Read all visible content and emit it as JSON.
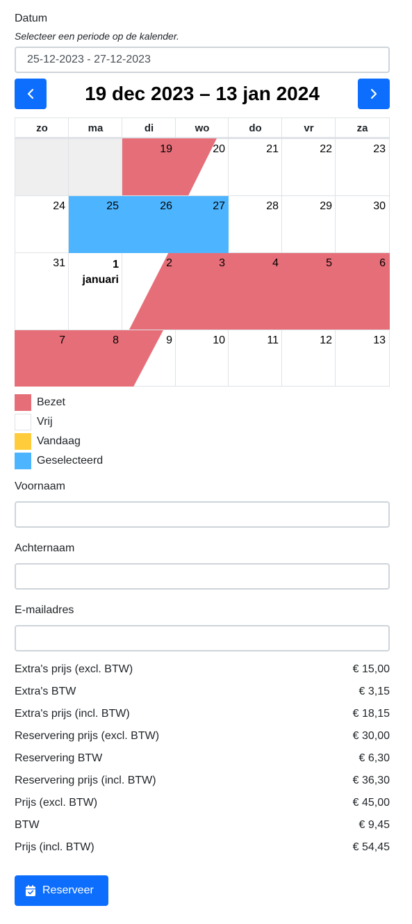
{
  "form": {
    "date_label": "Datum",
    "date_hint": "Selecteer een periode op de kalender.",
    "date_value": "25-12-2023 - 27-12-2023"
  },
  "calendar": {
    "title": "19 dec 2023 – 13 jan 2024",
    "prev_icon": "chevron-left-icon",
    "next_icon": "chevron-right-icon",
    "weekdays": [
      "zo",
      "ma",
      "di",
      "wo",
      "do",
      "vr",
      "za"
    ],
    "week1": [
      "19",
      "20",
      "21",
      "22",
      "23"
    ],
    "week2": [
      "24",
      "25",
      "26",
      "27",
      "28",
      "29",
      "30"
    ],
    "week3": [
      "31",
      "1",
      "januari",
      "2",
      "3",
      "4",
      "5",
      "6"
    ],
    "week4": [
      "7",
      "8",
      "9",
      "10",
      "11",
      "12",
      "13"
    ],
    "colors": {
      "occupied": "#e66e78",
      "selected": "#4db5ff",
      "today": "#ffcd3c",
      "outside": "#efefef",
      "primary": "#0d6efd"
    }
  },
  "legend": {
    "items": [
      "Bezet",
      "Vrij",
      "Vandaag",
      "Geselecteerd"
    ]
  },
  "fields": {
    "first_name_label": "Voornaam",
    "last_name_label": "Achternaam",
    "email_label": "E-mailadres"
  },
  "prices": [
    {
      "label": "Extra's prijs (excl. BTW)",
      "value": "€ 15,00"
    },
    {
      "label": "Extra's BTW",
      "value": "€ 3,15"
    },
    {
      "label": "Extra's prijs (incl. BTW)",
      "value": "€ 18,15"
    },
    {
      "label": "Reservering prijs (excl. BTW)",
      "value": "€ 30,00"
    },
    {
      "label": "Reservering BTW",
      "value": "€ 6,30"
    },
    {
      "label": "Reservering prijs (incl. BTW)",
      "value": "€ 36,30"
    },
    {
      "label": "Prijs (excl. BTW)",
      "value": "€ 45,00"
    },
    {
      "label": "BTW",
      "value": "€ 9,45"
    },
    {
      "label": "Prijs (incl. BTW)",
      "value": "€ 54,45"
    }
  ],
  "submit": {
    "label": "Reserveer",
    "icon": "calendar-check-icon"
  }
}
